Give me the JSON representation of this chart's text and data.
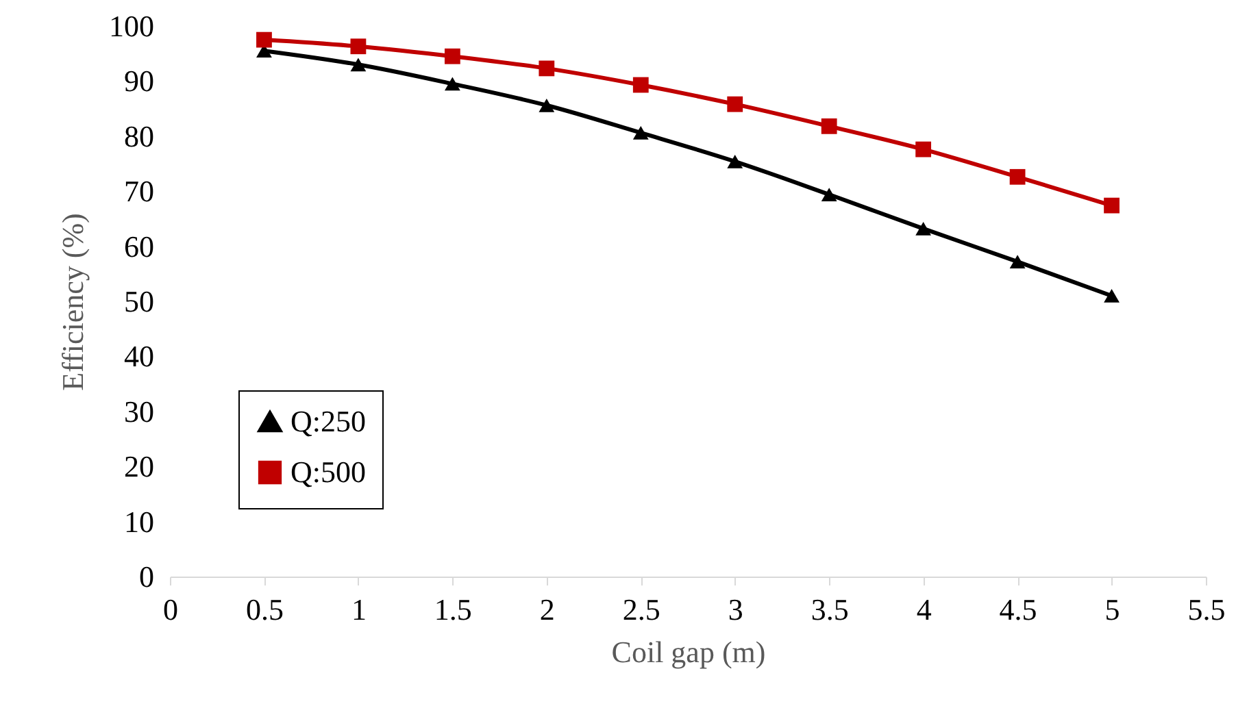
{
  "chart_data": {
    "type": "line",
    "xlabel": "Coil gap (m)",
    "ylabel": "Efficiency (%)",
    "x": [
      0.5,
      1,
      1.5,
      2,
      2.5,
      3,
      3.5,
      4,
      4.5,
      5
    ],
    "xlim": [
      0,
      5.5
    ],
    "xticks": [
      0,
      0.5,
      1,
      1.5,
      2,
      2.5,
      3,
      3.5,
      4,
      4.5,
      5,
      5.5
    ],
    "ylim": [
      0,
      100
    ],
    "yticks": [
      0,
      10,
      20,
      30,
      40,
      50,
      60,
      70,
      80,
      90,
      100
    ],
    "grid": false,
    "legend": "bottom left",
    "line_style": "solid",
    "series": [
      {
        "name": "Q:250",
        "color": "#000000",
        "marker": "triangle",
        "values": [
          95.5,
          93,
          89.5,
          85.6,
          80.6,
          75.4,
          69.4,
          63.2,
          57.2,
          51
        ]
      },
      {
        "name": "Q:500",
        "color": "#c00000",
        "marker": "square",
        "values": [
          97.5,
          96.3,
          94.5,
          92.3,
          89.3,
          85.8,
          81.8,
          77.6,
          72.6,
          67.4
        ]
      }
    ]
  }
}
